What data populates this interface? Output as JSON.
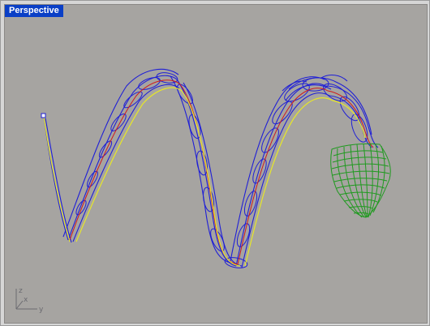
{
  "viewport": {
    "title": "Perspective"
  },
  "axes": {
    "z_label": "z",
    "x_label": "x",
    "y_label": "y"
  },
  "colors": {
    "background": "#a6a4a1",
    "title_bar": "#0a3fc6",
    "wire_blue": "#1f1fd6",
    "wire_red": "#d01a1a",
    "wire_yellow": "#e6e62a",
    "mesh_green": "#1f9a1f"
  },
  "icons": [
    "axis-gizmo-icon"
  ]
}
